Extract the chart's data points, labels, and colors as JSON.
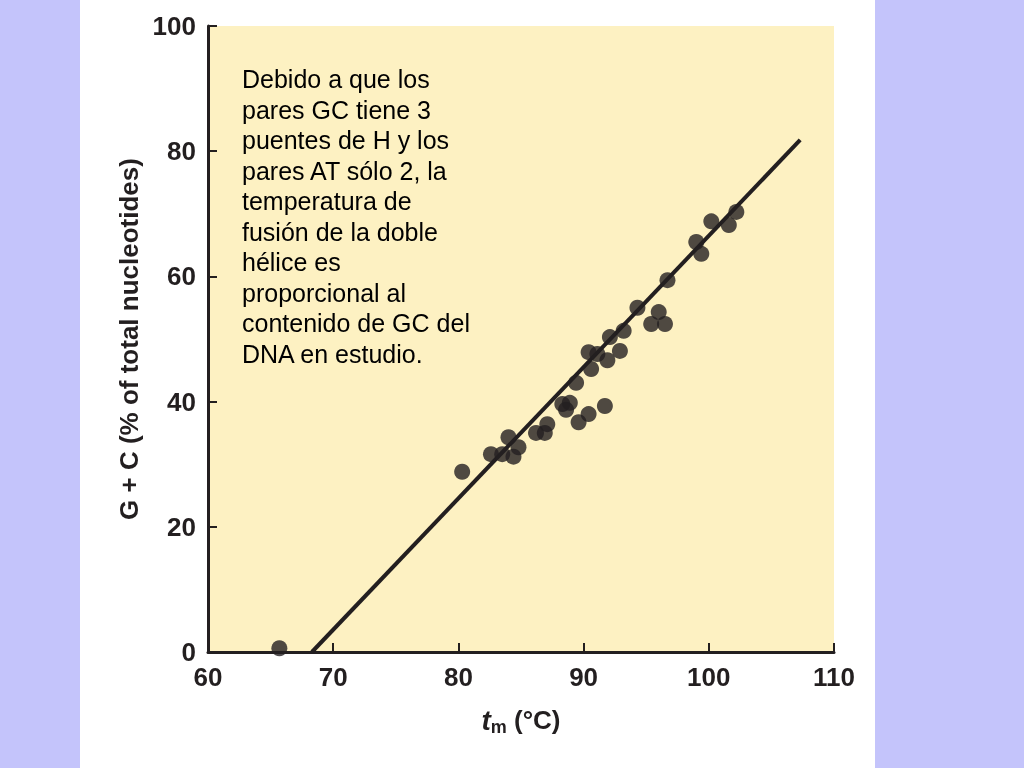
{
  "chart_data": {
    "type": "scatter",
    "xlabel": "t$_{m}$ (°C)",
    "ylabel": "G + C (% of total nucleotides)",
    "annotations": [
      "Debido a que los pares GC tiene 3 puentes de H y los pares AT sólo 2, la temperatura de fusión de la doble hélice es proporcional al contenido de GC del DNA en estudio."
    ],
    "xlim": [
      60,
      110
    ],
    "xticks": [
      60,
      70,
      80,
      90,
      100,
      110
    ],
    "ylim": [
      0,
      100
    ],
    "yticks": [
      0,
      20,
      40,
      60,
      80,
      100
    ],
    "grid": false,
    "marker": "circle",
    "series": [
      {
        "type": "scatter",
        "color": "#231f20",
        "x": [
          65.7,
          80.3,
          82.6,
          83.5,
          84.0,
          84.4,
          84.8,
          86.2,
          86.9,
          87.1,
          88.3,
          88.6,
          88.9,
          89.4,
          89.6,
          90.4,
          90.4,
          90.6,
          91.1,
          91.7,
          91.9,
          92.1,
          92.9,
          93.2,
          94.3,
          95.4,
          96.0,
          96.5,
          96.7,
          99.0,
          99.4,
          100.2,
          101.6,
          102.2
        ],
        "values": [
          0.6,
          28.8,
          31.6,
          31.6,
          34.3,
          31.2,
          32.7,
          35.0,
          35.0,
          36.4,
          39.6,
          38.7,
          39.8,
          43.0,
          36.7,
          38.0,
          47.9,
          45.2,
          47.6,
          39.3,
          46.6,
          50.3,
          48.1,
          51.3,
          55.0,
          52.4,
          54.3,
          52.4,
          59.4,
          65.5,
          63.6,
          68.8,
          68.2,
          70.3
        ]
      },
      {
        "type": "line",
        "color": "#231f20",
        "marker": "none",
        "x": [
          68.3,
          107.3
        ],
        "values": [
          0,
          81.8
        ]
      }
    ]
  }
}
